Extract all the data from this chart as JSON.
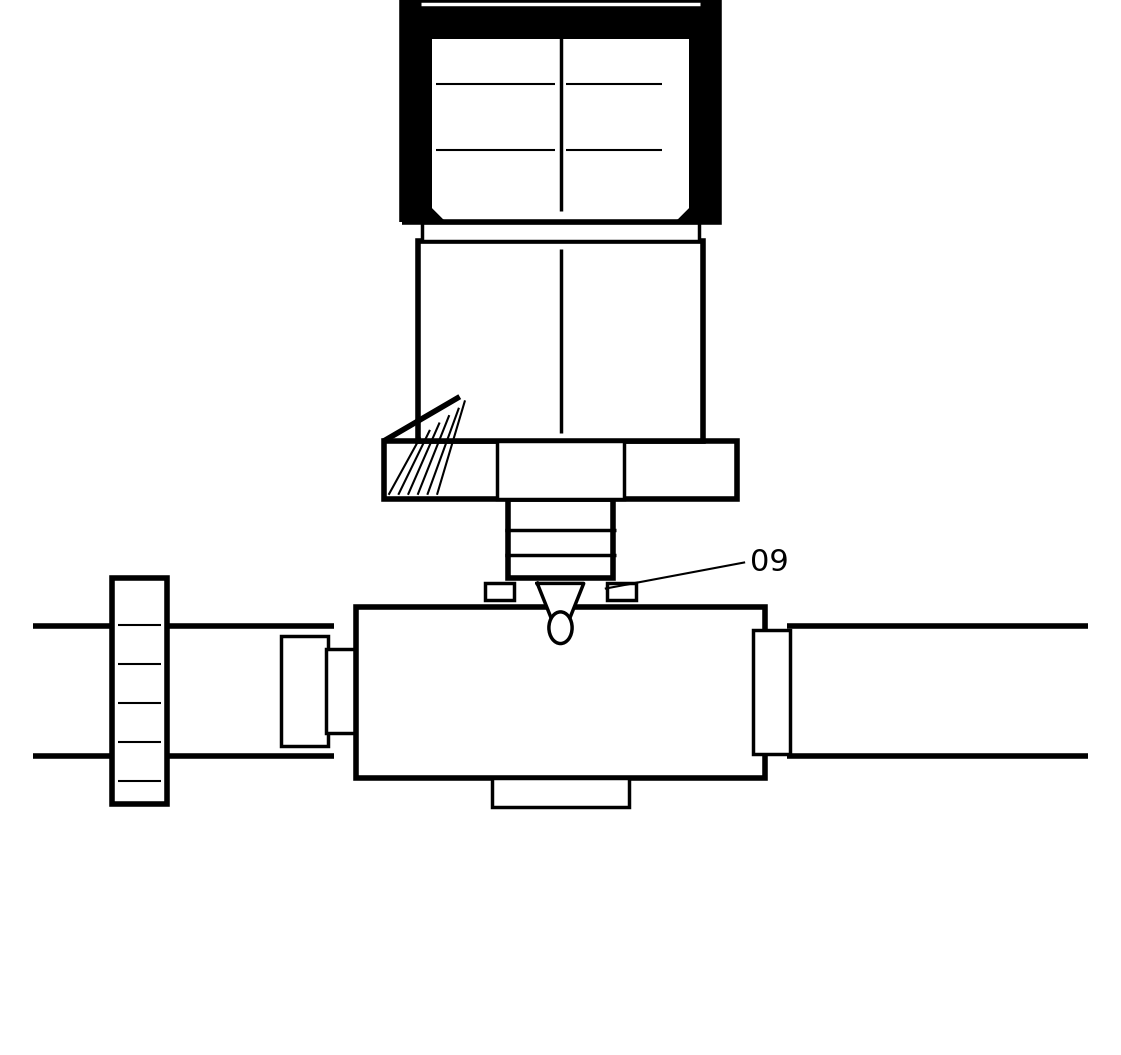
{
  "bg_color": "#ffffff",
  "line_color": "#000000",
  "lw_thick": 4.0,
  "lw_medium": 2.5,
  "lw_thin": 1.5,
  "label_09_text": "09",
  "figsize": [
    11.21,
    10.55
  ]
}
